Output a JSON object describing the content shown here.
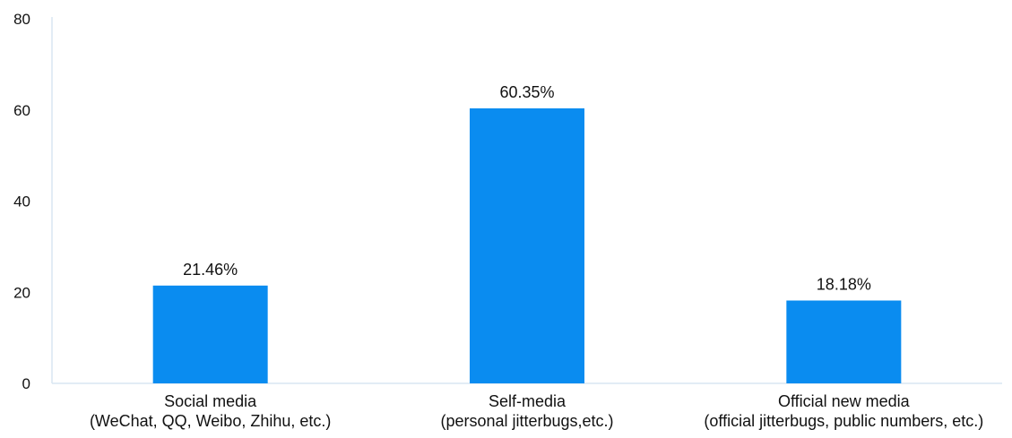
{
  "chart_data": {
    "type": "bar",
    "categories": [
      {
        "line1": "Social media",
        "line2": "(WeChat, QQ, Weibo, Zhihu, etc.)"
      },
      {
        "line1": "Self-media",
        "line2": "(personal jitterbugs,etc.)"
      },
      {
        "line1": "Official new media",
        "line2": "(official jitterbugs, public numbers, etc.)"
      }
    ],
    "values": [
      21.46,
      60.35,
      18.18
    ],
    "data_labels": [
      "21.46%",
      "60.35%",
      "18.18%"
    ],
    "ylim": [
      0,
      80
    ],
    "yticks": [
      0,
      20,
      40,
      60,
      80
    ],
    "grid": false,
    "bar_color": "#0A8CF0",
    "axis_color": "#D9E6F2"
  }
}
